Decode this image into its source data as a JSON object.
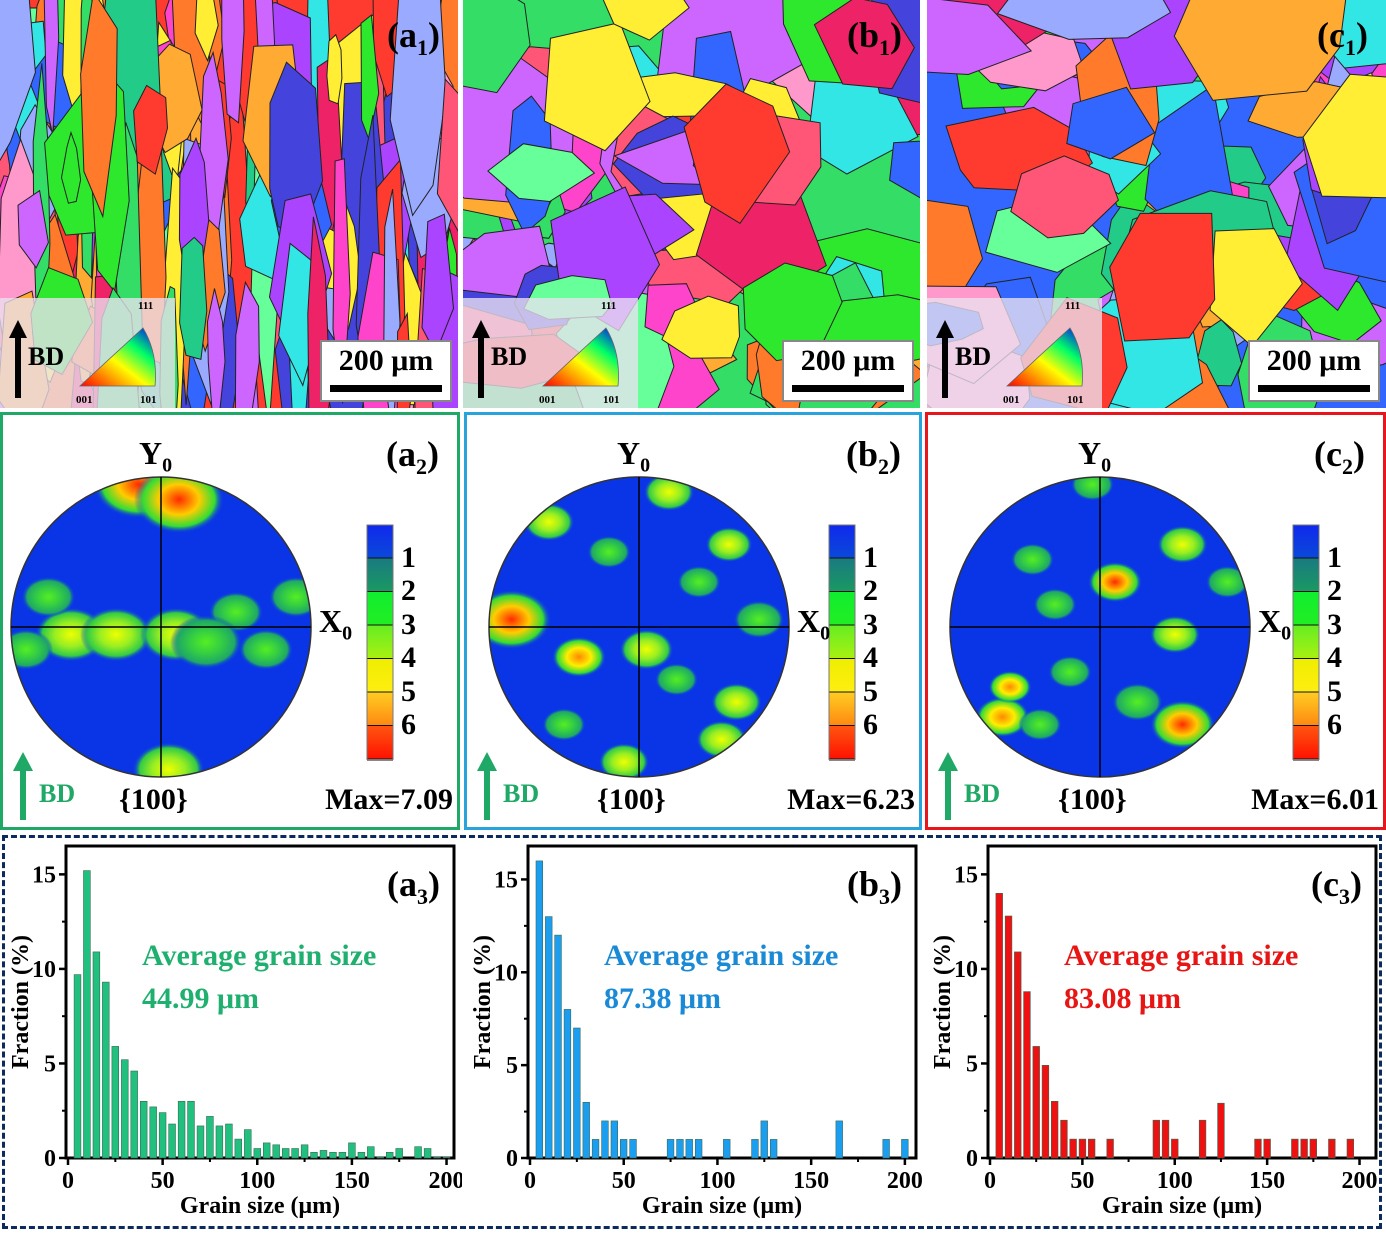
{
  "figure": {
    "top_row": [
      {
        "id": "a1",
        "label_main": "(a",
        "label_sub": "1",
        "label_end": ")",
        "scale_bar": "200 μm",
        "bd_label": "BD",
        "ipf_corners": {
          "c001": "001",
          "c101": "101",
          "c111": "111"
        }
      },
      {
        "id": "b1",
        "label_main": "(b",
        "label_sub": "1",
        "label_end": ")",
        "scale_bar": "200 μm",
        "bd_label": "BD",
        "ipf_corners": {
          "c001": "001",
          "c101": "101",
          "c111": "111"
        }
      },
      {
        "id": "c1",
        "label_main": "(c",
        "label_sub": "1",
        "label_end": ")",
        "scale_bar": "200 μm",
        "bd_label": "BD",
        "ipf_corners": {
          "c001": "001",
          "c101": "101",
          "c111": "111"
        }
      }
    ],
    "middle_row": [
      {
        "id": "a2",
        "label_main": "(a",
        "label_sub": "2",
        "label_end": ")",
        "y_axis": "Y",
        "x_axis": "X",
        "axis_sub": "0",
        "plane": "{100}",
        "max": "Max=7.09",
        "bd_label": "BD",
        "frame_color": "#1fa866"
      },
      {
        "id": "b2",
        "label_main": "(b",
        "label_sub": "2",
        "label_end": ")",
        "y_axis": "Y",
        "x_axis": "X",
        "axis_sub": "0",
        "plane": "{100}",
        "max": "Max=6.23",
        "bd_label": "BD",
        "frame_color": "#29a3dc"
      },
      {
        "id": "c2",
        "label_main": "(c",
        "label_sub": "2",
        "label_end": ")",
        "y_axis": "Y",
        "x_axis": "X",
        "axis_sub": "0",
        "plane": "{100}",
        "max": "Max=6.01",
        "bd_label": "BD",
        "frame_color": "#e8161c"
      }
    ],
    "colorbar": {
      "ticks": [
        "1",
        "2",
        "3",
        "4",
        "5",
        "6"
      ]
    },
    "bd_arrow_color": "#1fa866"
  },
  "chart_data": [
    {
      "type": "bar",
      "id": "a3",
      "panel_label_main": "(a",
      "panel_label_sub": "3",
      "panel_label_end": ")",
      "annotation_line1": "Average grain size",
      "annotation_line2": "44.99 μm",
      "color": "#22c07f",
      "text_color": "#1fb070",
      "xlabel": "Grain size (μm)",
      "ylabel": "Fraction (%)",
      "xlim": [
        0,
        205
      ],
      "ylim": [
        0,
        16.5
      ],
      "xticks": [
        0,
        50,
        100,
        150,
        200
      ],
      "yticks": [
        0,
        5,
        10,
        15
      ],
      "x": [
        5,
        10,
        15,
        20,
        25,
        30,
        35,
        40,
        45,
        50,
        55,
        60,
        65,
        70,
        75,
        80,
        85,
        90,
        95,
        100,
        105,
        110,
        115,
        120,
        125,
        130,
        135,
        140,
        145,
        150,
        155,
        160,
        165,
        170,
        175,
        180,
        185,
        190,
        195,
        200
      ],
      "values": [
        9.7,
        15.2,
        10.9,
        9.3,
        5.9,
        5.2,
        4.6,
        3.0,
        2.7,
        2.4,
        1.8,
        3.0,
        3.0,
        1.7,
        2.2,
        1.7,
        1.8,
        1.0,
        1.5,
        0.5,
        0.8,
        0.7,
        0.5,
        0.5,
        0.7,
        0.3,
        0.4,
        0.3,
        0.3,
        0.8,
        0.3,
        0.6,
        0.05,
        0.3,
        0.5,
        0,
        0.6,
        0.5,
        0.05,
        0.05
      ]
    },
    {
      "type": "bar",
      "id": "b3",
      "panel_label_main": "(b",
      "panel_label_sub": "3",
      "panel_label_end": ")",
      "annotation_line1": "Average grain size",
      "annotation_line2": "87.38 μm",
      "color": "#1b9ef0",
      "text_color": "#1a8ad6",
      "xlabel": "Grain size (μm)",
      "ylabel": "Fraction (%)",
      "xlim": [
        0,
        207
      ],
      "ylim": [
        0,
        16.8
      ],
      "xticks": [
        0,
        50,
        100,
        150,
        200
      ],
      "yticks": [
        0,
        5,
        10,
        15
      ],
      "x": [
        5,
        10,
        15,
        20,
        25,
        30,
        35,
        40,
        45,
        50,
        55,
        75,
        80,
        85,
        90,
        105,
        120,
        125,
        130,
        165,
        190,
        200
      ],
      "values": [
        16,
        13,
        12,
        8,
        7,
        3,
        1,
        2,
        2,
        1,
        1,
        1,
        1,
        1,
        1,
        1,
        1,
        2,
        1,
        2,
        1,
        1
      ]
    },
    {
      "type": "bar",
      "id": "c3",
      "panel_label_main": "(c",
      "panel_label_sub": "3",
      "panel_label_end": ")",
      "annotation_line1": "Average grain size",
      "annotation_line2": "83.08 μm",
      "color": "#ee1111",
      "text_color": "#e81515",
      "xlabel": "Grain size (μm)",
      "ylabel": "Fraction (%)",
      "xlim": [
        0,
        210
      ],
      "ylim": [
        0,
        16.5
      ],
      "xticks": [
        0,
        50,
        100,
        150,
        200
      ],
      "yticks": [
        0,
        5,
        10,
        15
      ],
      "x": [
        5,
        10,
        15,
        20,
        25,
        30,
        35,
        40,
        45,
        50,
        55,
        65,
        90,
        95,
        100,
        115,
        125,
        145,
        150,
        165,
        170,
        175,
        185,
        195
      ],
      "values": [
        14,
        12.8,
        10.9,
        8.8,
        5.9,
        4.9,
        3,
        2,
        1,
        1,
        1,
        1,
        2,
        2,
        1,
        2,
        2.9,
        1,
        1,
        1,
        1,
        1,
        1,
        1
      ]
    }
  ]
}
